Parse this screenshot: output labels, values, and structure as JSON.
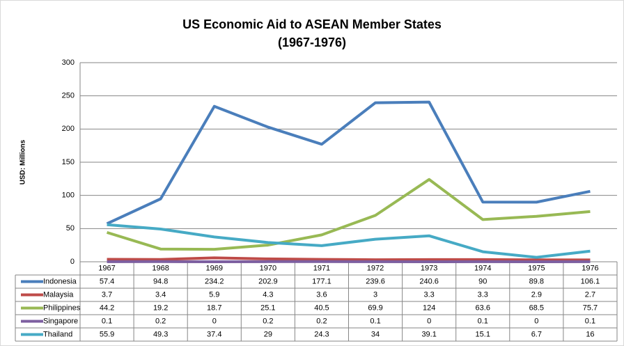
{
  "chart_data": {
    "type": "line",
    "title": [
      "US Economic Aid to ASEAN Member States",
      "(1967-1976)"
    ],
    "y_label": "USD: Millions",
    "categories": [
      "1967",
      "1968",
      "1969",
      "1970",
      "1971",
      "1972",
      "1973",
      "1974",
      "1975",
      "1976"
    ],
    "series": [
      {
        "name": "Indonesia",
        "color": "#4a7ebb",
        "values": [
          57.4,
          94.8,
          234.2,
          202.9,
          177.1,
          239.6,
          240.6,
          90,
          89.8,
          106.1
        ]
      },
      {
        "name": "Malaysia",
        "color": "#be4b48",
        "values": [
          3.7,
          3.4,
          5.9,
          4.3,
          3.6,
          3,
          3.3,
          3.3,
          2.9,
          2.7
        ]
      },
      {
        "name": "Philippines",
        "color": "#98b954",
        "values": [
          44.2,
          19.2,
          18.7,
          25.1,
          40.5,
          69.9,
          124,
          63.6,
          68.5,
          75.7
        ]
      },
      {
        "name": "Singapore",
        "color": "#7d5fa0",
        "values": [
          0.1,
          0.2,
          0,
          0.2,
          0.2,
          0.1,
          0,
          0.1,
          0,
          0.1
        ]
      },
      {
        "name": "Thailand",
        "color": "#46aac5",
        "values": [
          55.9,
          49.3,
          37.4,
          29,
          24.3,
          34,
          39.1,
          15.1,
          6.7,
          16
        ]
      }
    ],
    "ylim": [
      0,
      300
    ],
    "yticks": [
      0,
      50,
      100,
      150,
      200,
      250,
      300
    ],
    "grid": true,
    "data_table": true
  }
}
